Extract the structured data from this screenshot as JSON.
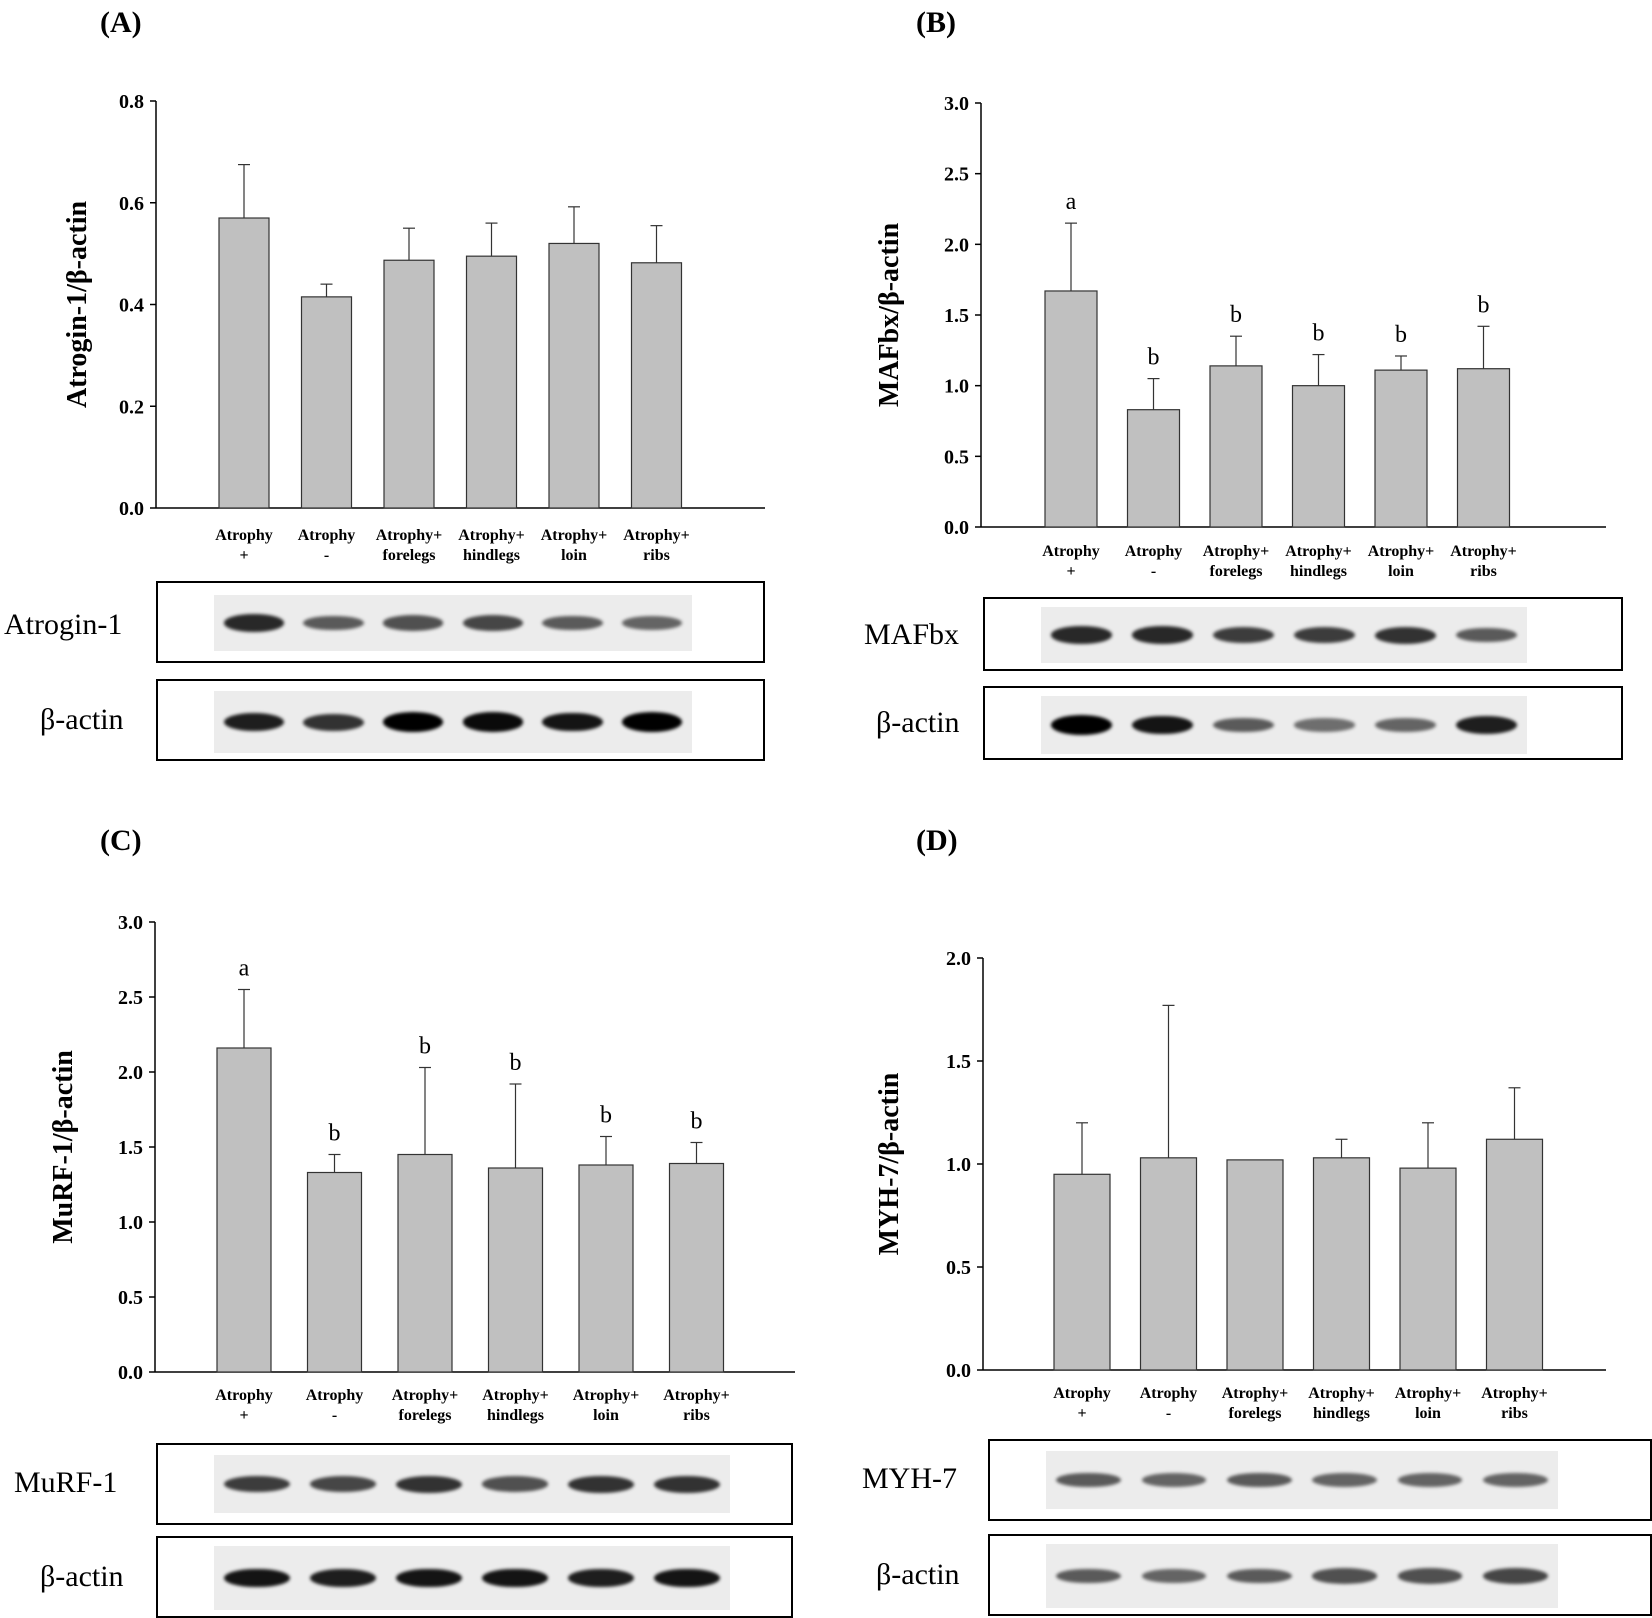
{
  "panels": [
    {
      "letter": "(A)",
      "blots": [
        {
          "label": "Atrogin-1",
          "intensity": [
            0.8,
            0.55,
            0.6,
            0.65,
            0.55,
            0.5
          ]
        },
        {
          "label": "β-actin",
          "intensity": [
            0.85,
            0.75,
            1.0,
            0.95,
            0.9,
            1.0
          ]
        }
      ]
    },
    {
      "letter": "(B)",
      "blots": [
        {
          "label": "MAFbx",
          "intensity": [
            0.8,
            0.8,
            0.7,
            0.7,
            0.75,
            0.55
          ]
        },
        {
          "label": "β-actin",
          "intensity": [
            1.0,
            0.9,
            0.55,
            0.45,
            0.5,
            0.85
          ]
        }
      ]
    },
    {
      "letter": "(C)",
      "blots": [
        {
          "label": "MuRF-1",
          "intensity": [
            0.7,
            0.65,
            0.75,
            0.6,
            0.75,
            0.75
          ]
        },
        {
          "label": "β-actin",
          "intensity": [
            0.9,
            0.85,
            0.9,
            0.9,
            0.85,
            0.9
          ]
        }
      ]
    },
    {
      "letter": "(D)",
      "blots": [
        {
          "label": "MYH-7",
          "intensity": [
            0.55,
            0.5,
            0.55,
            0.5,
            0.5,
            0.5
          ]
        },
        {
          "label": "β-actin",
          "intensity": [
            0.55,
            0.5,
            0.55,
            0.6,
            0.6,
            0.65
          ]
        }
      ]
    }
  ],
  "chart_data": [
    {
      "type": "bar",
      "panel": "(A)",
      "categories": [
        [
          "Atrophy",
          "+"
        ],
        [
          "Atrophy",
          "-"
        ],
        [
          "Atrophy+",
          "forelegs"
        ],
        [
          "Atrophy+",
          "hindlegs"
        ],
        [
          "Atrophy+",
          "loin"
        ],
        [
          "Atrophy+",
          "ribs"
        ]
      ],
      "values": [
        0.57,
        0.415,
        0.487,
        0.495,
        0.52,
        0.482
      ],
      "errors": [
        0.105,
        0.025,
        0.063,
        0.065,
        0.072,
        0.073
      ],
      "significance": [
        "",
        "",
        "",
        "",
        "",
        ""
      ],
      "ylabel": "Atrogin-1/β-actin",
      "ylim": [
        0,
        0.8
      ],
      "yticks": [
        "0.0",
        "0.2",
        "0.4",
        "0.6",
        "0.8"
      ],
      "bar_color": "#c0c0c0",
      "grid": false
    },
    {
      "type": "bar",
      "panel": "(B)",
      "categories": [
        [
          "Atrophy",
          "+"
        ],
        [
          "Atrophy",
          "-"
        ],
        [
          "Atrophy+",
          "forelegs"
        ],
        [
          "Atrophy+",
          "hindlegs"
        ],
        [
          "Atrophy+",
          "loin"
        ],
        [
          "Atrophy+",
          "ribs"
        ]
      ],
      "values": [
        1.67,
        0.83,
        1.14,
        1.0,
        1.11,
        1.12
      ],
      "errors": [
        0.48,
        0.22,
        0.21,
        0.22,
        0.1,
        0.3
      ],
      "significance": [
        "a",
        "b",
        "b",
        "b",
        "b",
        "b"
      ],
      "ylabel": "MAFbx/β-actin",
      "ylim": [
        0,
        3.0
      ],
      "yticks": [
        "0.0",
        "0.5",
        "1.0",
        "1.5",
        "2.0",
        "2.5",
        "3.0"
      ],
      "bar_color": "#c0c0c0",
      "grid": false
    },
    {
      "type": "bar",
      "panel": "(C)",
      "categories": [
        [
          "Atrophy",
          "+"
        ],
        [
          "Atrophy",
          "-"
        ],
        [
          "Atrophy+",
          "forelegs"
        ],
        [
          "Atrophy+",
          "hindlegs"
        ],
        [
          "Atrophy+",
          "loin"
        ],
        [
          "Atrophy+",
          "ribs"
        ]
      ],
      "values": [
        2.16,
        1.33,
        1.45,
        1.36,
        1.38,
        1.39
      ],
      "errors": [
        0.39,
        0.12,
        0.58,
        0.56,
        0.19,
        0.14
      ],
      "significance": [
        "a",
        "b",
        "b",
        "b",
        "b",
        "b"
      ],
      "ylabel": "MuRF-1/β-actin",
      "ylim": [
        0,
        3.0
      ],
      "yticks": [
        "0.0",
        "0.5",
        "1.0",
        "1.5",
        "2.0",
        "2.5",
        "3.0"
      ],
      "bar_color": "#c0c0c0",
      "grid": false
    },
    {
      "type": "bar",
      "panel": "(D)",
      "categories": [
        [
          "Atrophy",
          "+"
        ],
        [
          "Atrophy",
          "-"
        ],
        [
          "Atrophy+",
          "forelegs"
        ],
        [
          "Atrophy+",
          "hindlegs"
        ],
        [
          "Atrophy+",
          "loin"
        ],
        [
          "Atrophy+",
          "ribs"
        ]
      ],
      "values": [
        0.95,
        1.03,
        1.02,
        1.03,
        0.98,
        1.12
      ],
      "errors": [
        0.25,
        0.74,
        0.0,
        0.09,
        0.22,
        0.25
      ],
      "significance": [
        "",
        "",
        "",
        "",
        "",
        ""
      ],
      "ylabel": "MYH-7/β-actin",
      "ylim": [
        0,
        2.0
      ],
      "yticks": [
        "0.0",
        "0.5",
        "1.0",
        "1.5",
        "2.0"
      ],
      "bar_color": "#c0c0c0",
      "grid": false
    }
  ]
}
